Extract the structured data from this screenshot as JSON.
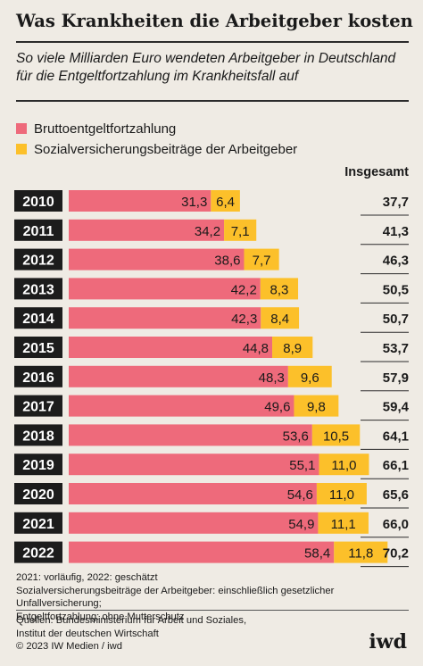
{
  "title": "Was Krankheiten die Arbeitgeber kosten",
  "subtitle": "So viele Milliarden Euro wendeten Arbeitgeber in Deutschland für die Entgeltfortzahlung im Krankheitsfall auf",
  "total_header": "Insgesamt",
  "notes": {
    "line1": "2021: vorläufig, 2022: geschätzt",
    "line2": "Sozialversicherungsbeiträge der Arbeitgeber: einschließlich gesetzlicher Unfallversicherung;",
    "line3": "Entgeltfortzahlung: ohne Mutterschutz"
  },
  "sources": {
    "line1": "Quellen: Bundesministerium für Arbeit und Soziales,",
    "line2": "Institut der deutschen Wirtschaft",
    "line3": "© 2023 IW Medien / iwd"
  },
  "logo": "iwd",
  "colors": {
    "brutto": "#ee6a7b",
    "sozial": "#fcc02a",
    "year_box": "#1c1c1c",
    "background": "#efebe4"
  },
  "chart_data": {
    "type": "bar",
    "orientation": "horizontal",
    "stacked": true,
    "categories": [
      "2010",
      "2011",
      "2012",
      "2013",
      "2014",
      "2015",
      "2016",
      "2017",
      "2018",
      "2019",
      "2020",
      "2021",
      "2022"
    ],
    "series": [
      {
        "name": "Bruttoentgeltfortzahlung",
        "color": "#ee6a7b",
        "values": [
          31.3,
          34.2,
          38.6,
          42.2,
          42.3,
          44.8,
          48.3,
          49.6,
          53.6,
          55.1,
          54.6,
          54.9,
          58.4
        ],
        "labels": [
          "31,3",
          "34,2",
          "38,6",
          "42,2",
          "42,3",
          "44,8",
          "48,3",
          "49,6",
          "53,6",
          "55,1",
          "54,6",
          "54,9",
          "58,4"
        ]
      },
      {
        "name": "Sozialversicherungsbeiträge der Arbeitgeber",
        "color": "#fcc02a",
        "values": [
          6.4,
          7.1,
          7.7,
          8.3,
          8.4,
          8.9,
          9.6,
          9.8,
          10.5,
          11.0,
          11.0,
          11.1,
          11.8
        ],
        "labels": [
          "6,4",
          "7,1",
          "7,7",
          "8,3",
          "8,4",
          "8,9",
          "9,6",
          "9,8",
          "10,5",
          "11,0",
          "11,0",
          "11,1",
          "11,8"
        ]
      }
    ],
    "totals": [
      37.7,
      41.3,
      46.3,
      50.5,
      50.7,
      53.7,
      57.9,
      59.4,
      64.1,
      66.1,
      65.6,
      66.0,
      70.2
    ],
    "total_labels": [
      "37,7",
      "41,3",
      "46,3",
      "50,5",
      "50,7",
      "53,7",
      "57,9",
      "59,4",
      "64,1",
      "66,1",
      "65,6",
      "66,0",
      "70,2"
    ],
    "legend_position": "top-left",
    "grid": false
  }
}
